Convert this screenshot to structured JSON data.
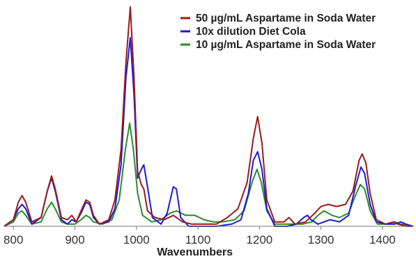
{
  "chart_data": {
    "type": "line",
    "xlabel": "Wavenumbers",
    "ylabel": "",
    "xlim": [
      785,
      1450
    ],
    "ylim": [
      0,
      1.0
    ],
    "x_ticks": [
      800,
      900,
      1000,
      1100,
      1200,
      1300,
      1400
    ],
    "x_tick_labels": [
      "800",
      "900",
      "1000",
      "1100",
      "1200",
      "1300",
      "1400"
    ],
    "grid": false,
    "legend_position": "top-right",
    "series": [
      {
        "name": "50 µg/mL Aspartame in Soda Water",
        "color": "#9b1a1a",
        "points": [
          [
            785,
            0.0
          ],
          [
            800,
            0.03
          ],
          [
            808,
            0.11
          ],
          [
            814,
            0.14
          ],
          [
            820,
            0.11
          ],
          [
            830,
            0.02
          ],
          [
            845,
            0.04
          ],
          [
            855,
            0.16
          ],
          [
            862,
            0.23
          ],
          [
            868,
            0.17
          ],
          [
            878,
            0.04
          ],
          [
            888,
            0.03
          ],
          [
            895,
            0.05
          ],
          [
            902,
            0.02
          ],
          [
            910,
            0.07
          ],
          [
            918,
            0.12
          ],
          [
            924,
            0.11
          ],
          [
            930,
            0.05
          ],
          [
            940,
            0.01
          ],
          [
            955,
            0.03
          ],
          [
            965,
            0.12
          ],
          [
            975,
            0.35
          ],
          [
            983,
            0.75
          ],
          [
            990,
            1.0
          ],
          [
            996,
            0.68
          ],
          [
            1002,
            0.25
          ],
          [
            1008,
            0.19
          ],
          [
            1012,
            0.17
          ],
          [
            1018,
            0.07
          ],
          [
            1030,
            0.04
          ],
          [
            1045,
            0.03
          ],
          [
            1060,
            0.05
          ],
          [
            1075,
            0.02
          ],
          [
            1090,
            0.01
          ],
          [
            1110,
            0.01
          ],
          [
            1130,
            0.01
          ],
          [
            1148,
            0.04
          ],
          [
            1165,
            0.08
          ],
          [
            1180,
            0.2
          ],
          [
            1190,
            0.4
          ],
          [
            1197,
            0.5
          ],
          [
            1204,
            0.38
          ],
          [
            1212,
            0.12
          ],
          [
            1225,
            0.02
          ],
          [
            1240,
            0.02
          ],
          [
            1248,
            0.04
          ],
          [
            1258,
            0.01
          ],
          [
            1275,
            0.02
          ],
          [
            1290,
            0.06
          ],
          [
            1300,
            0.09
          ],
          [
            1312,
            0.1
          ],
          [
            1325,
            0.09
          ],
          [
            1340,
            0.1
          ],
          [
            1352,
            0.16
          ],
          [
            1362,
            0.3
          ],
          [
            1367,
            0.33
          ],
          [
            1373,
            0.29
          ],
          [
            1380,
            0.15
          ],
          [
            1390,
            0.03
          ],
          [
            1405,
            0.01
          ],
          [
            1418,
            0.02
          ],
          [
            1425,
            0.01
          ],
          [
            1440,
            0.0
          ],
          [
            1450,
            0.0
          ]
        ]
      },
      {
        "name": "10x dilution Diet Cola",
        "color": "#1a1ad8",
        "points": [
          [
            785,
            0.0
          ],
          [
            800,
            0.03
          ],
          [
            808,
            0.08
          ],
          [
            814,
            0.1
          ],
          [
            820,
            0.08
          ],
          [
            830,
            0.01
          ],
          [
            845,
            0.04
          ],
          [
            855,
            0.16
          ],
          [
            862,
            0.22
          ],
          [
            868,
            0.16
          ],
          [
            878,
            0.03
          ],
          [
            888,
            0.01
          ],
          [
            895,
            0.03
          ],
          [
            902,
            0.02
          ],
          [
            910,
            0.06
          ],
          [
            918,
            0.11
          ],
          [
            924,
            0.1
          ],
          [
            930,
            0.04
          ],
          [
            940,
            0.01
          ],
          [
            955,
            0.02
          ],
          [
            965,
            0.08
          ],
          [
            975,
            0.28
          ],
          [
            983,
            0.68
          ],
          [
            990,
            0.86
          ],
          [
            996,
            0.6
          ],
          [
            1002,
            0.22
          ],
          [
            1008,
            0.26
          ],
          [
            1012,
            0.28
          ],
          [
            1018,
            0.18
          ],
          [
            1026,
            0.04
          ],
          [
            1040,
            0.01
          ],
          [
            1050,
            0.06
          ],
          [
            1060,
            0.18
          ],
          [
            1065,
            0.17
          ],
          [
            1072,
            0.04
          ],
          [
            1085,
            0.0
          ],
          [
            1110,
            0.0
          ],
          [
            1130,
            0.0
          ],
          [
            1155,
            0.01
          ],
          [
            1170,
            0.03
          ],
          [
            1182,
            0.15
          ],
          [
            1190,
            0.3
          ],
          [
            1197,
            0.34
          ],
          [
            1204,
            0.26
          ],
          [
            1212,
            0.08
          ],
          [
            1225,
            0.0
          ],
          [
            1245,
            0.0
          ],
          [
            1260,
            0.01
          ],
          [
            1272,
            0.04
          ],
          [
            1278,
            0.05
          ],
          [
            1284,
            0.03
          ],
          [
            1295,
            0.01
          ],
          [
            1305,
            0.02
          ],
          [
            1315,
            0.03
          ],
          [
            1330,
            0.02
          ],
          [
            1345,
            0.05
          ],
          [
            1356,
            0.18
          ],
          [
            1365,
            0.27
          ],
          [
            1371,
            0.24
          ],
          [
            1380,
            0.1
          ],
          [
            1390,
            0.02
          ],
          [
            1405,
            0.01
          ],
          [
            1420,
            0.01
          ],
          [
            1430,
            0.02
          ],
          [
            1438,
            0.01
          ],
          [
            1450,
            0.0
          ]
        ]
      },
      {
        "name": "10 µg/mL Aspartame in Soda Water",
        "color": "#2a8c2a",
        "points": [
          [
            785,
            0.0
          ],
          [
            800,
            0.02
          ],
          [
            808,
            0.06
          ],
          [
            814,
            0.07
          ],
          [
            820,
            0.05
          ],
          [
            830,
            0.01
          ],
          [
            845,
            0.02
          ],
          [
            855,
            0.08
          ],
          [
            862,
            0.11
          ],
          [
            868,
            0.08
          ],
          [
            878,
            0.02
          ],
          [
            888,
            0.01
          ],
          [
            900,
            0.01
          ],
          [
            910,
            0.03
          ],
          [
            918,
            0.05
          ],
          [
            924,
            0.04
          ],
          [
            930,
            0.02
          ],
          [
            945,
            0.01
          ],
          [
            960,
            0.03
          ],
          [
            972,
            0.12
          ],
          [
            982,
            0.35
          ],
          [
            989,
            0.47
          ],
          [
            995,
            0.35
          ],
          [
            1002,
            0.15
          ],
          [
            1010,
            0.05
          ],
          [
            1025,
            0.02
          ],
          [
            1040,
            0.03
          ],
          [
            1055,
            0.06
          ],
          [
            1065,
            0.07
          ],
          [
            1080,
            0.05
          ],
          [
            1095,
            0.05
          ],
          [
            1110,
            0.03
          ],
          [
            1125,
            0.02
          ],
          [
            1140,
            0.02
          ],
          [
            1160,
            0.03
          ],
          [
            1175,
            0.07
          ],
          [
            1188,
            0.2
          ],
          [
            1196,
            0.26
          ],
          [
            1203,
            0.2
          ],
          [
            1212,
            0.07
          ],
          [
            1225,
            0.01
          ],
          [
            1250,
            0.01
          ],
          [
            1270,
            0.01
          ],
          [
            1285,
            0.02
          ],
          [
            1295,
            0.05
          ],
          [
            1305,
            0.07
          ],
          [
            1318,
            0.05
          ],
          [
            1330,
            0.04
          ],
          [
            1345,
            0.06
          ],
          [
            1356,
            0.14
          ],
          [
            1364,
            0.19
          ],
          [
            1371,
            0.17
          ],
          [
            1380,
            0.07
          ],
          [
            1392,
            0.01
          ],
          [
            1410,
            0.01
          ],
          [
            1420,
            0.02
          ],
          [
            1430,
            0.01
          ],
          [
            1450,
            0.0
          ]
        ]
      }
    ]
  }
}
